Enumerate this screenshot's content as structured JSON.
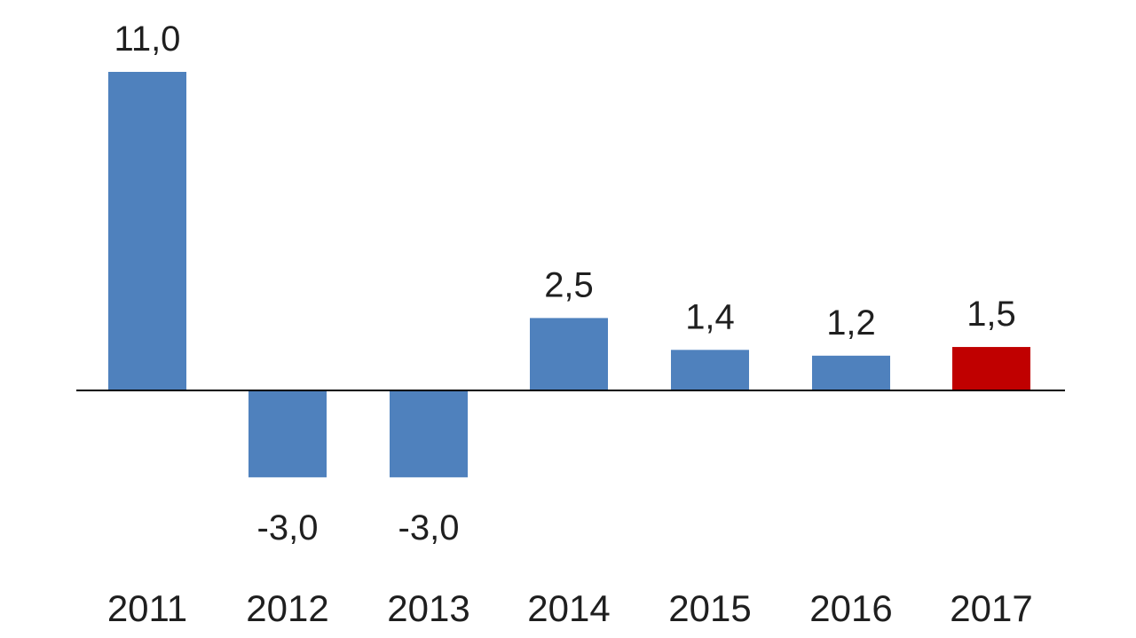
{
  "chart_data": {
    "type": "bar",
    "categories": [
      "2011",
      "2012",
      "2013",
      "2014",
      "2015",
      "2016",
      "2017"
    ],
    "values": [
      11.0,
      -3.0,
      -3.0,
      2.5,
      1.4,
      1.2,
      1.5
    ],
    "value_labels": [
      "11,0",
      "-3,0",
      "-3,0",
      "2,5",
      "1,4",
      "1,2",
      "1,5"
    ],
    "bar_colors": [
      "#4f81bd",
      "#4f81bd",
      "#4f81bd",
      "#4f81bd",
      "#4f81bd",
      "#4f81bd",
      "#c00000"
    ],
    "axis_color": "#000000",
    "grid": false,
    "legend": "none"
  }
}
